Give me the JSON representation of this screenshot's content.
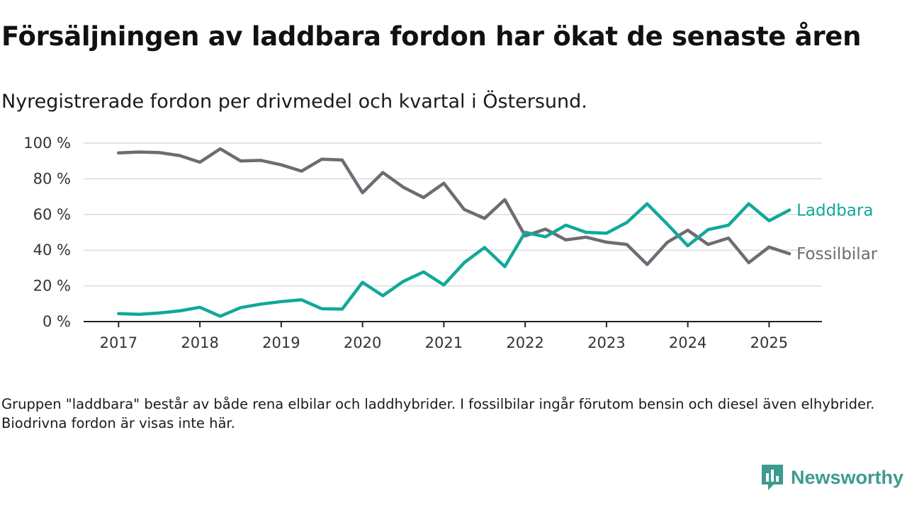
{
  "title": "Försäljningen av laddbara fordon har ökat de senaste åren",
  "subtitle": "Nyregistrerade fordon per drivmedel och kvartal i Östersund.",
  "footnote": "Gruppen \"laddbara\" består av både rena elbilar och laddhybrider. I fossilbilar ingår förutom bensin och diesel även elhybrider. Biodrivna fordon är visas inte här.",
  "brand": {
    "name": "Newsworthy",
    "icon": "newsworthy-logo-icon",
    "color": "#3e9b8f"
  },
  "chart_data": {
    "type": "line",
    "x": [
      2017.0,
      2017.25,
      2017.5,
      2017.75,
      2018.0,
      2018.25,
      2018.5,
      2018.75,
      2019.0,
      2019.25,
      2019.5,
      2019.75,
      2020.0,
      2020.25,
      2020.5,
      2020.75,
      2021.0,
      2021.25,
      2021.5,
      2021.75,
      2022.0,
      2022.25,
      2022.5,
      2022.75,
      2023.0,
      2023.25,
      2023.5,
      2023.75,
      2024.0,
      2024.25,
      2024.5,
      2024.75,
      2025.0,
      2025.25
    ],
    "series": [
      {
        "name": "Laddbara",
        "color": "#11a89a",
        "values": [
          4.5,
          4.1,
          4.8,
          6.0,
          8.0,
          3.0,
          7.8,
          9.8,
          11.2,
          12.2,
          7.2,
          7.0,
          22.0,
          14.5,
          22.5,
          27.8,
          20.5,
          33.0,
          41.5,
          30.8,
          50.0,
          47.5,
          54.0,
          50.0,
          49.5,
          55.5,
          66.0,
          54.5,
          42.5,
          51.5,
          54.0,
          66.0,
          56.5,
          62.5
        ]
      },
      {
        "name": "Fossilbilar",
        "color": "#6d6c74",
        "values": [
          94.5,
          95.0,
          94.7,
          93.0,
          89.3,
          96.8,
          90.0,
          90.3,
          87.8,
          84.3,
          91.0,
          90.5,
          72.2,
          83.5,
          75.3,
          69.5,
          77.5,
          62.8,
          57.8,
          68.3,
          48.0,
          51.8,
          45.8,
          47.3,
          44.5,
          43.2,
          32.0,
          44.5,
          51.2,
          43.2,
          46.8,
          33.0,
          41.8,
          38.0
        ]
      }
    ],
    "xticks": [
      "2017",
      "2018",
      "2019",
      "2020",
      "2021",
      "2022",
      "2023",
      "2024",
      "2025"
    ],
    "yticks": [
      "0 %",
      "20 %",
      "40 %",
      "60 %",
      "80 %",
      "100 %"
    ],
    "xlim": [
      2016.57,
      2025.65
    ],
    "ylim": [
      0,
      100
    ],
    "grid": true,
    "legend": "inline labels at right end of lines"
  }
}
